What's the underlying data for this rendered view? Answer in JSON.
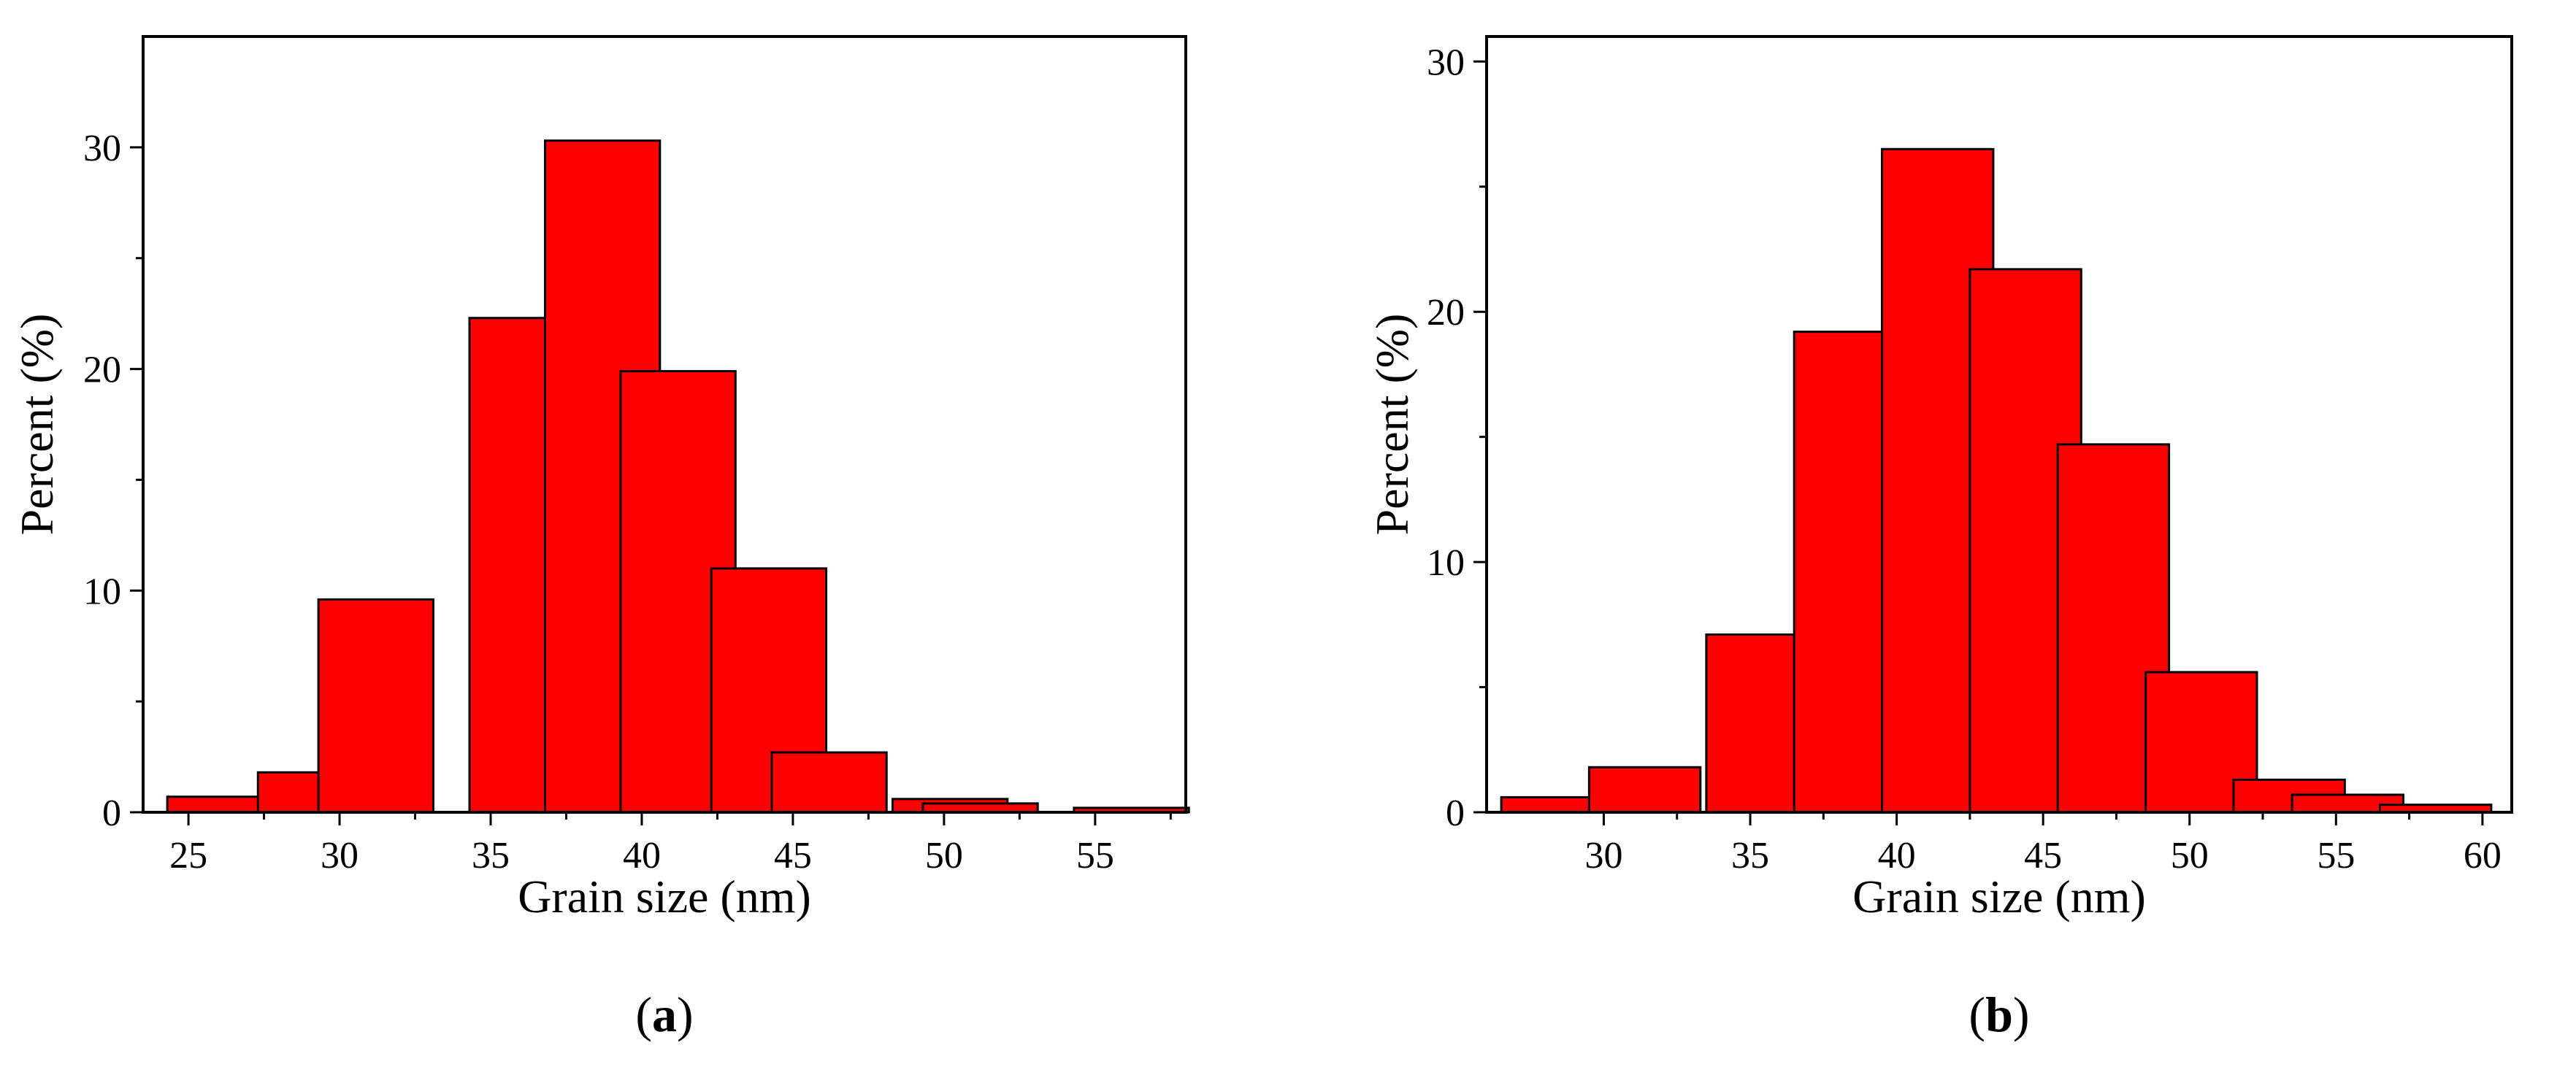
{
  "chart_data": [
    {
      "type": "bar",
      "panel_label": "a",
      "title": "",
      "xlabel": "Grain size (nm)",
      "ylabel": "Percent (%)",
      "xlim": [
        23.5,
        58
      ],
      "ylim": [
        0,
        35
      ],
      "grid": false,
      "x_ticks": [
        25,
        30,
        35,
        40,
        45,
        50,
        55
      ],
      "y_ticks": [
        0,
        10,
        20,
        30
      ],
      "bar_color": "#ff0000",
      "bar_width": 3.8,
      "x": [
        26.2,
        29.2,
        31.2,
        36.2,
        38.7,
        41.2,
        44.2,
        46.2,
        50.2,
        51.2,
        56.2
      ],
      "values": [
        0.7,
        1.8,
        9.6,
        22.3,
        30.3,
        19.9,
        11.0,
        2.7,
        0.6,
        0.4,
        0.2
      ]
    },
    {
      "type": "bar",
      "panel_label": "b",
      "title": "",
      "xlabel": "Grain size (nm)",
      "ylabel": "Percent (%)",
      "xlim": [
        26,
        61
      ],
      "ylim": [
        0,
        31
      ],
      "grid": false,
      "x_ticks": [
        30,
        35,
        40,
        45,
        50,
        55,
        60
      ],
      "y_ticks": [
        0,
        10,
        20,
        30
      ],
      "bar_color": "#ff0000",
      "bar_width": 3.8,
      "x": [
        28.4,
        31.4,
        35.4,
        38.4,
        41.4,
        44.4,
        47.4,
        50.4,
        53.4,
        55.4,
        58.4
      ],
      "values": [
        0.6,
        1.8,
        7.1,
        19.2,
        26.5,
        21.7,
        14.7,
        5.6,
        1.3,
        0.7,
        0.3
      ]
    }
  ]
}
